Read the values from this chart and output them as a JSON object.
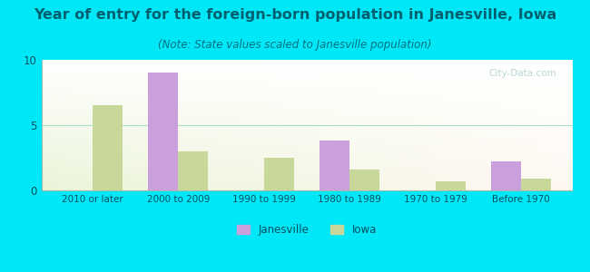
{
  "title": "Year of entry for the foreign-born population in Janesville, Iowa",
  "subtitle": "(Note: State values scaled to Janesville population)",
  "categories": [
    "2010 or later",
    "2000 to 2009",
    "1990 to 1999",
    "1980 to 1989",
    "1970 to 1979",
    "Before 1970"
  ],
  "janesville_values": [
    0,
    9.0,
    0,
    3.8,
    0,
    2.2
  ],
  "iowa_values": [
    6.5,
    3.0,
    2.5,
    1.6,
    0.7,
    0.9
  ],
  "janesville_color": "#c9a0dc",
  "iowa_color": "#c8d89a",
  "background_outer": "#00e8f8",
  "ylim": [
    0,
    10
  ],
  "yticks": [
    0,
    5,
    10
  ],
  "bar_width": 0.35,
  "legend_labels": [
    "Janesville",
    "Iowa"
  ],
  "title_fontsize": 11.5,
  "subtitle_fontsize": 8.5,
  "title_color": "#006070",
  "subtitle_color": "#007080",
  "tick_color": "#005060",
  "axis_color": "#005060"
}
